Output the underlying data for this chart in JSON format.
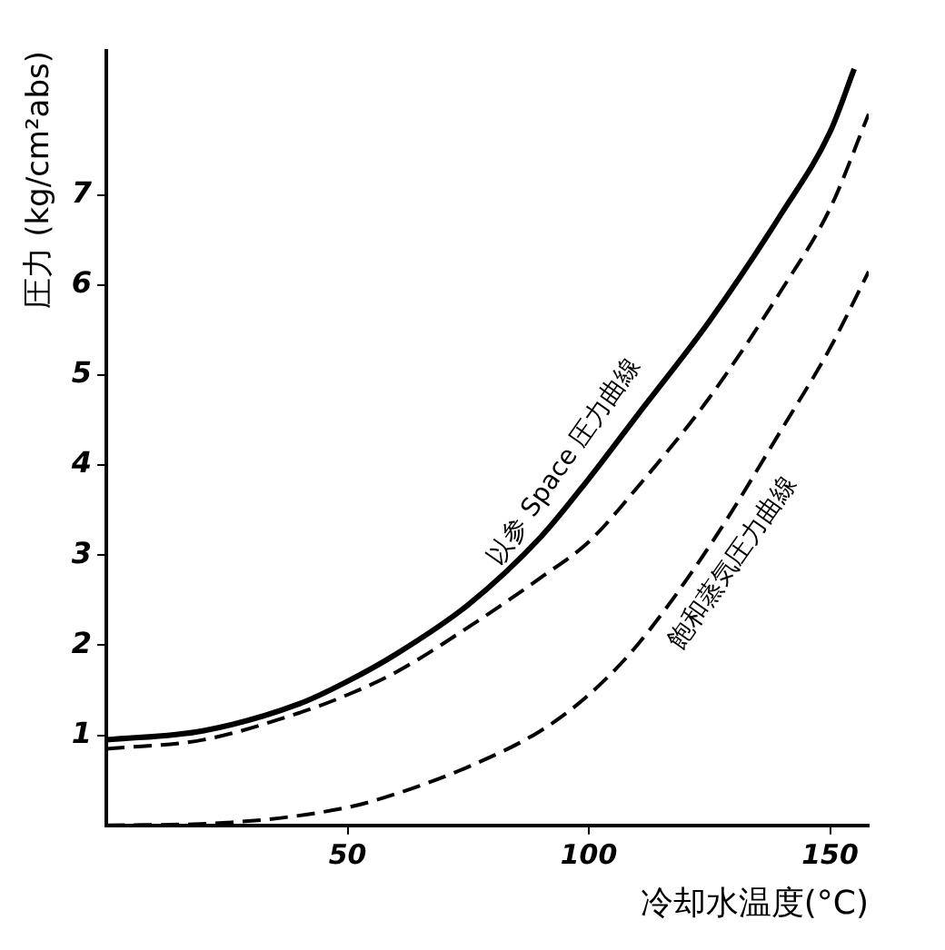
{
  "chart_data": {
    "type": "line",
    "xlabel": "冷却水温度(°C)",
    "ylabel": "圧力 (kg/cm²abs)",
    "xlim": [
      0,
      158
    ],
    "ylim": [
      0,
      8.6
    ],
    "xticks": [
      50,
      100,
      150
    ],
    "yticks": [
      1,
      2,
      3,
      4,
      5,
      6,
      7
    ],
    "grid": false,
    "legend": false,
    "marker": "none",
    "series": [
      {
        "color": "#000000",
        "line_style": "solid",
        "x": [
          0,
          20,
          40,
          50,
          60,
          75,
          90,
          100,
          110,
          125,
          140,
          150,
          155
        ],
        "values": [
          0.95,
          1.05,
          1.35,
          1.6,
          1.9,
          2.45,
          3.2,
          3.85,
          4.55,
          5.6,
          6.8,
          7.7,
          8.4
        ]
      },
      {
        "color": "#000000",
        "line_style": "dashed",
        "x": [
          0,
          20,
          40,
          50,
          60,
          75,
          90,
          100,
          110,
          125,
          140,
          150,
          158
        ],
        "values": [
          0.85,
          0.95,
          1.25,
          1.45,
          1.7,
          2.2,
          2.75,
          3.15,
          3.75,
          4.75,
          5.95,
          6.85,
          7.9
        ]
      },
      {
        "color": "#000000",
        "line_style": "dashed",
        "x": [
          0,
          25,
          50,
          60,
          75,
          90,
          100,
          110,
          125,
          140,
          150,
          158
        ],
        "values": [
          0,
          0.03,
          0.2,
          0.35,
          0.65,
          1.05,
          1.45,
          2.0,
          3.1,
          4.4,
          5.3,
          6.15
        ]
      }
    ],
    "annotations": [
      {
        "text": "以参 Space 圧力曲線",
        "x": 100,
        "y": 3.85
      },
      {
        "text": "飽和蒸気圧力曲線",
        "x": 125,
        "y": 3.1
      }
    ]
  }
}
